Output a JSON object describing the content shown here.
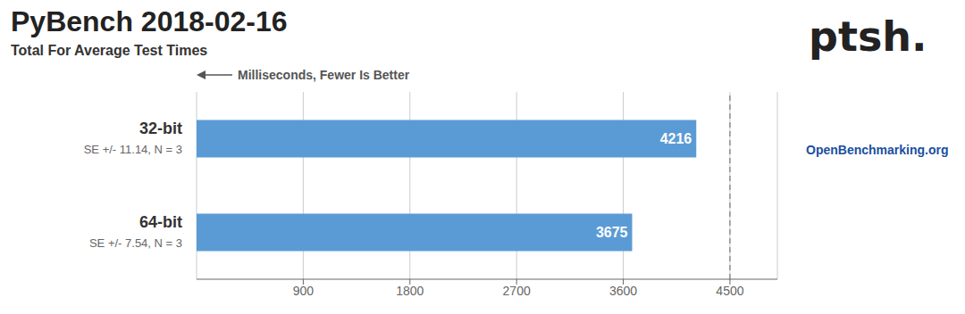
{
  "chart_data": {
    "type": "bar",
    "orientation": "horizontal",
    "title": "PyBench 2018-02-16",
    "subtitle": "Total For Average Test Times",
    "xlabel": "Milliseconds, Fewer Is Better",
    "categories": [
      "32-bit",
      "64-bit"
    ],
    "se_labels": [
      "SE +/- 11.14, N = 3",
      "SE +/- 7.54, N = 3"
    ],
    "values": [
      4216,
      3675
    ],
    "data_labels": true,
    "color": "#5b9bd5",
    "xlim": [
      0,
      4900
    ],
    "xticks": [
      900,
      1800,
      2700,
      3600,
      4500
    ],
    "grid": true,
    "reference_line": 4500,
    "annotations": [
      "ptsh.",
      "OpenBenchmarking.org"
    ]
  }
}
